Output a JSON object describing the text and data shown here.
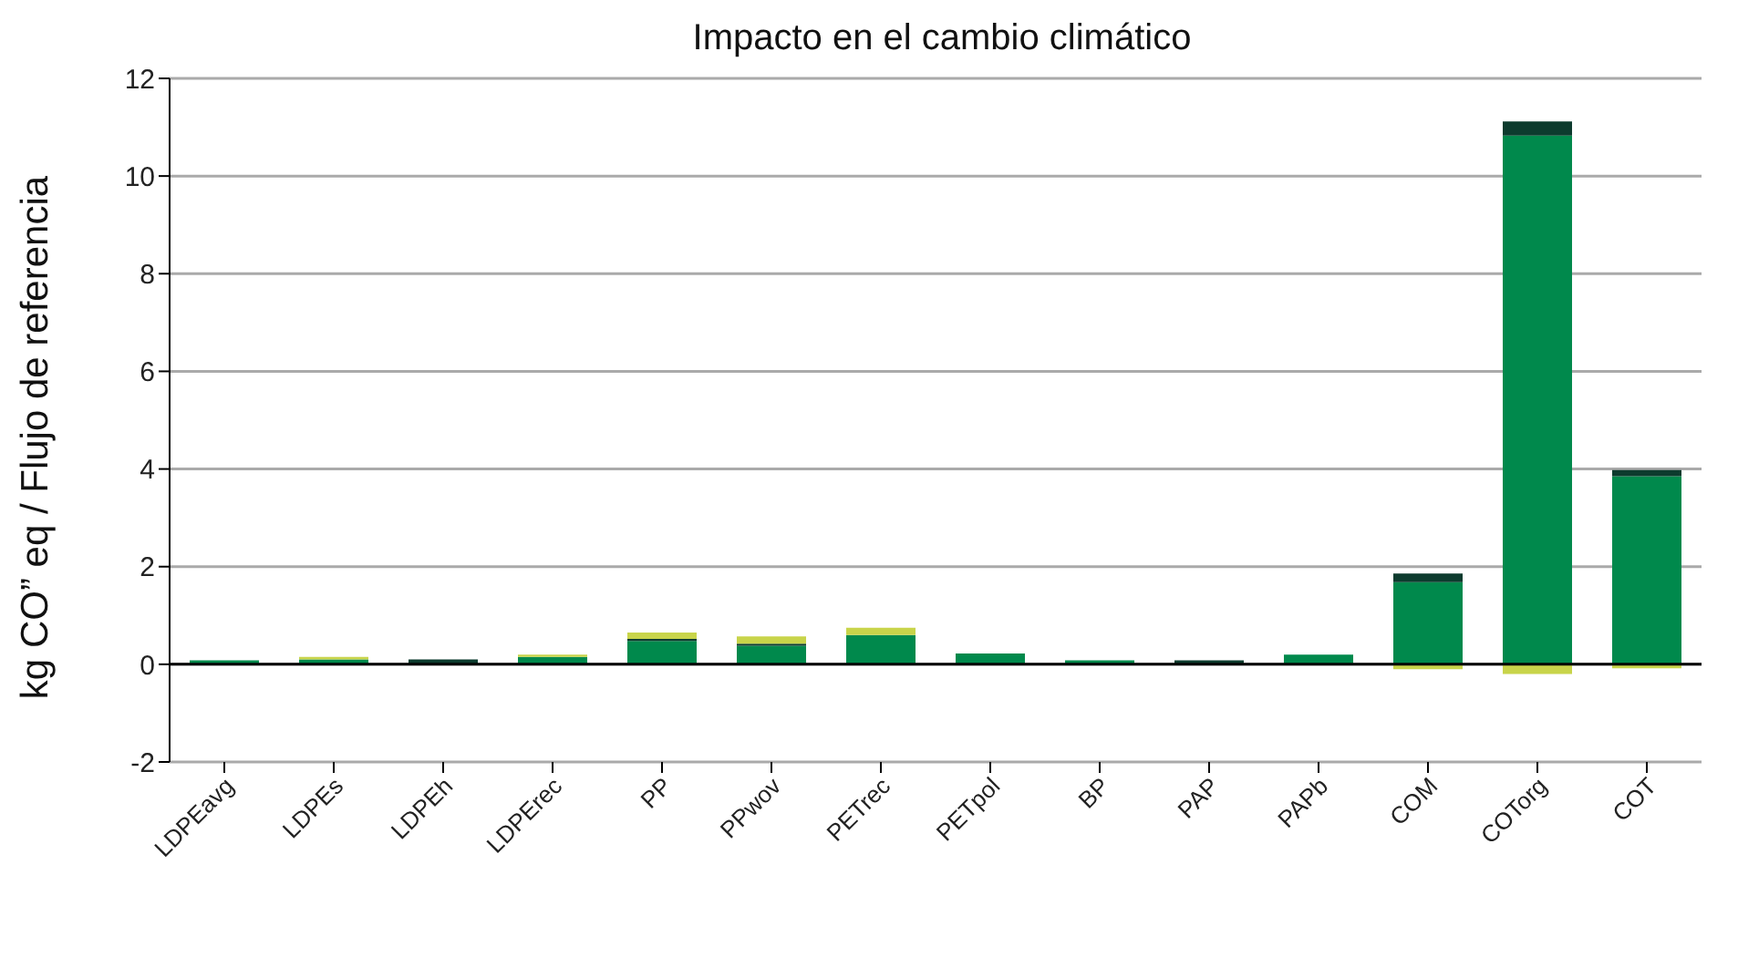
{
  "chart_data": {
    "type": "bar",
    "title": "Impacto en el cambio climático",
    "ylabel": "kg CO” eq / Flujo de referencia",
    "categories": [
      "LDPEavg",
      "LDPEs",
      "LDPEh",
      "LDPErec",
      "PP",
      "PPwov",
      "PETrec",
      "PETpol",
      "BP",
      "PAP",
      "PAPb",
      "COM",
      "COTorg",
      "COT"
    ],
    "series": [
      {
        "color": "#00894c",
        "values": [
          0.08,
          0.1,
          null,
          0.15,
          0.48,
          0.38,
          0.6,
          0.22,
          0.08,
          null,
          0.2,
          1.68,
          10.83,
          3.85
        ]
      },
      {
        "color": "#0d3b2e",
        "values": [
          null,
          null,
          0.1,
          null,
          0.04,
          0.04,
          null,
          null,
          null,
          0.08,
          null,
          0.18,
          0.29,
          0.13
        ]
      },
      {
        "color": "#c8d44a",
        "values": [
          null,
          0.05,
          null,
          0.05,
          0.13,
          0.15,
          0.15,
          null,
          null,
          null,
          null,
          -0.1,
          -0.2,
          -0.08
        ]
      }
    ],
    "stacked": true,
    "ylim": [
      -2,
      12
    ],
    "yticks": [
      -2,
      0,
      2,
      4,
      6,
      8,
      10,
      12
    ],
    "grid": "y"
  }
}
